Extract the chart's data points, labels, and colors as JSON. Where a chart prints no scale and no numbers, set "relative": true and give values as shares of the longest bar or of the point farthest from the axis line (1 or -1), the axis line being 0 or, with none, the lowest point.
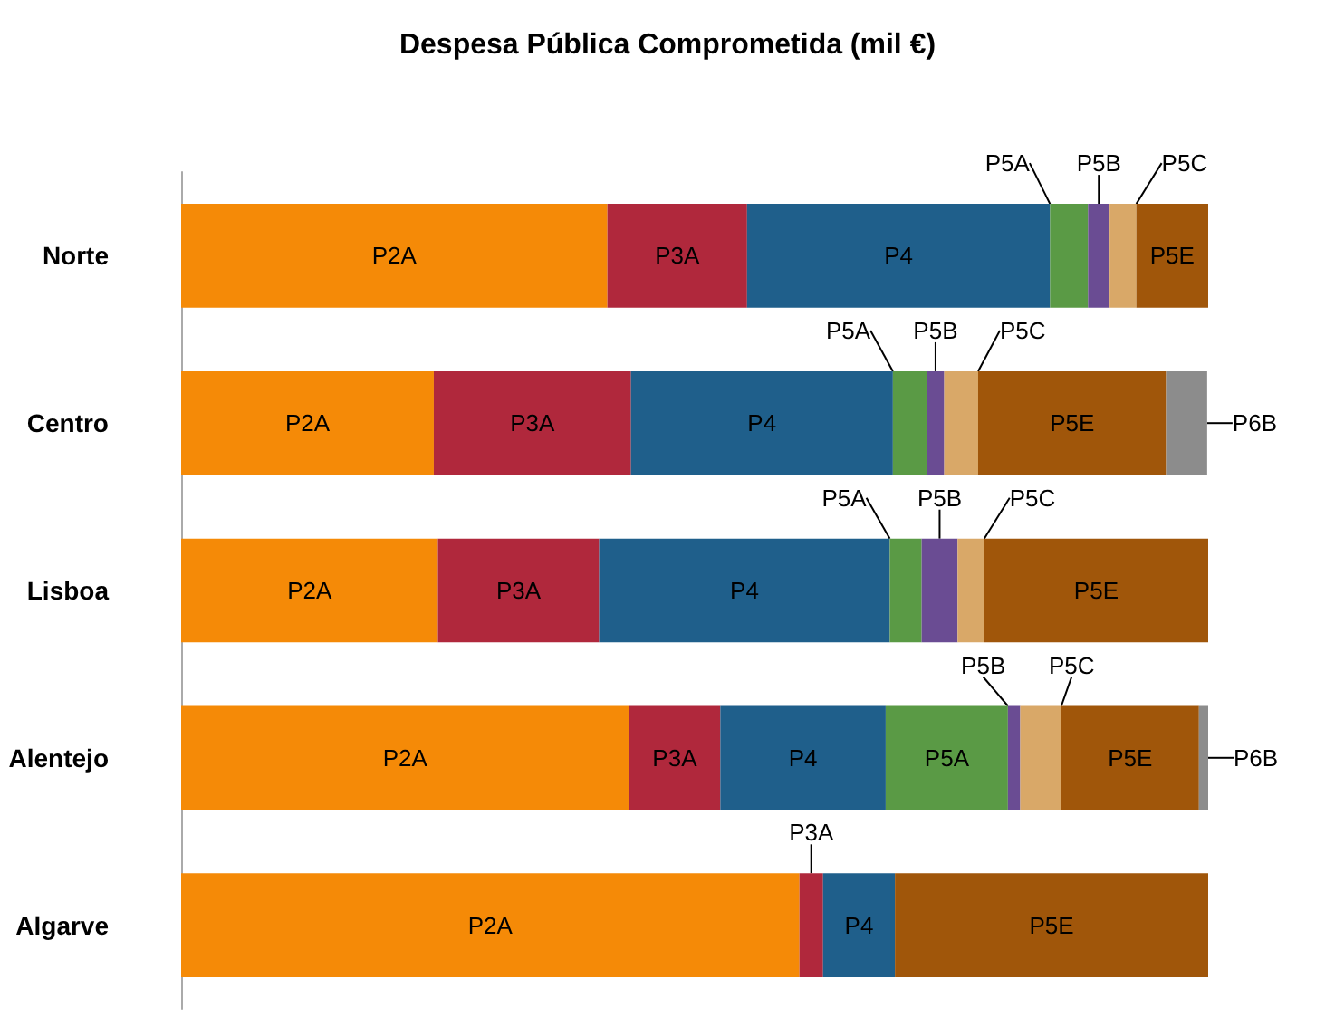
{
  "chart_data": {
    "type": "bar",
    "title": "Despesa Pública Comprometida (mil €)",
    "orientation": "horizontal",
    "stacked": true,
    "relative": true,
    "categories": [
      "Norte",
      "Centro",
      "Lisboa",
      "Alentejo",
      "Algarve"
    ],
    "series": [
      {
        "name": "P2A",
        "color": "#f58a07",
        "values": [
          0.415,
          0.246,
          0.25,
          0.436,
          0.602
        ]
      },
      {
        "name": "P3A",
        "color": "#b0283c",
        "values": [
          0.136,
          0.192,
          0.157,
          0.089,
          0.023
        ]
      },
      {
        "name": "P4",
        "color": "#1f5f8b",
        "values": [
          0.295,
          0.255,
          0.283,
          0.161,
          0.07
        ]
      },
      {
        "name": "P5A",
        "color": "#5a9a45",
        "values": [
          0.037,
          0.033,
          0.031,
          0.119,
          null
        ]
      },
      {
        "name": "P5B",
        "color": "#6a4c93",
        "values": [
          0.021,
          0.017,
          0.035,
          0.012,
          null
        ]
      },
      {
        "name": "P5C",
        "color": "#d9a868",
        "values": [
          0.026,
          0.033,
          0.026,
          0.04,
          null
        ]
      },
      {
        "name": "P5E",
        "color": "#a0560a",
        "values": [
          0.07,
          0.183,
          0.218,
          0.134,
          0.305
        ]
      },
      {
        "name": "P6B",
        "color": "#8c8c8c",
        "values": [
          null,
          0.04,
          null,
          0.009,
          null
        ]
      }
    ]
  }
}
